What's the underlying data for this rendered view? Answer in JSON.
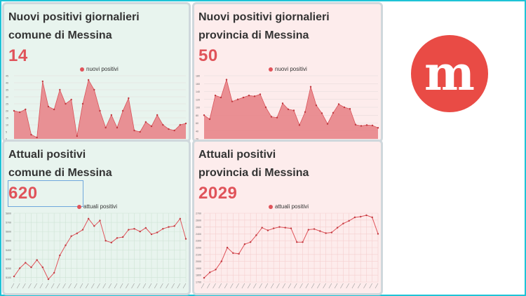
{
  "cards": [
    {
      "title1": "Nuovi positivi giornalieri",
      "title2": "comune di Messina",
      "value": "14",
      "legend": "nuovi positivi"
    },
    {
      "title1": "Nuovi positivi giornalieri",
      "title2": "provincia di Messina",
      "value": "50",
      "legend": "nuovi positivi"
    },
    {
      "title1": "Attuali positivi",
      "title2": "comune di Messina",
      "value": "620",
      "legend": "attuali positivi"
    },
    {
      "title1": "Attuali positivi",
      "title2": "provincia di Messina",
      "value": "2029",
      "legend": "attuali positivi"
    }
  ],
  "colors": {
    "accent": "#e0535a",
    "area_fill": "#e8858a",
    "green_bg": "#e8f4ee",
    "pink_bg": "#fdecec",
    "frame": "#1ec3d6"
  },
  "logo": {
    "icon": "messina-m-logo",
    "color": "#e94b45"
  },
  "chart_data": [
    {
      "type": "area",
      "series": [
        {
          "name": "nuovi positivi",
          "values": [
            20,
            19,
            21,
            3,
            1,
            41,
            23,
            21,
            35,
            25,
            28,
            2,
            25,
            42,
            35,
            20,
            8,
            17,
            8,
            20,
            29,
            6,
            5,
            12,
            9,
            17,
            10,
            7,
            6,
            10,
            11
          ]
        }
      ],
      "ylim": [
        0,
        45
      ],
      "yticks": [
        0,
        5,
        10,
        15,
        20,
        25,
        30,
        35,
        40,
        45
      ]
    },
    {
      "type": "area",
      "series": [
        {
          "name": "nuovi positivi",
          "values": [
            80,
            70,
            130,
            125,
            170,
            115,
            120,
            125,
            130,
            128,
            133,
            100,
            76,
            74,
            110,
            95,
            92,
            55,
            88,
            152,
            105,
            85,
            58,
            86,
            108,
            100,
            96,
            56,
            53,
            55,
            54,
            48
          ]
        }
      ],
      "ylim": [
        20,
        180
      ],
      "yticks": [
        20,
        40,
        60,
        80,
        100,
        120,
        140,
        160,
        180
      ]
    },
    {
      "type": "line",
      "series": [
        {
          "name": "attuali positivi",
          "values": [
            5110,
            5200,
            5260,
            5210,
            5290,
            5210,
            5080,
            5150,
            5340,
            5450,
            5550,
            5580,
            5620,
            5740,
            5660,
            5720,
            5500,
            5480,
            5530,
            5540,
            5620,
            5630,
            5600,
            5640,
            5570,
            5590,
            5630,
            5650,
            5660,
            5740,
            5520
          ]
        }
      ],
      "ylim": [
        5050,
        5800
      ],
      "yticks": [
        5100,
        5200,
        5300,
        5400,
        5500,
        5600,
        5700,
        5800
      ]
    },
    {
      "type": "line",
      "series": [
        {
          "name": "attuali positivi",
          "values": [
            1760,
            1840,
            1880,
            2000,
            2200,
            2120,
            2110,
            2250,
            2280,
            2380,
            2490,
            2450,
            2480,
            2500,
            2490,
            2480,
            2280,
            2280,
            2460,
            2470,
            2440,
            2410,
            2420,
            2490,
            2550,
            2590,
            2640,
            2650,
            2670,
            2640,
            2400
          ]
        }
      ],
      "ylim": [
        1700,
        2700
      ],
      "yticks": [
        1700,
        1800,
        1900,
        2000,
        2100,
        2200,
        2300,
        2400,
        2500,
        2600,
        2700
      ]
    }
  ]
}
